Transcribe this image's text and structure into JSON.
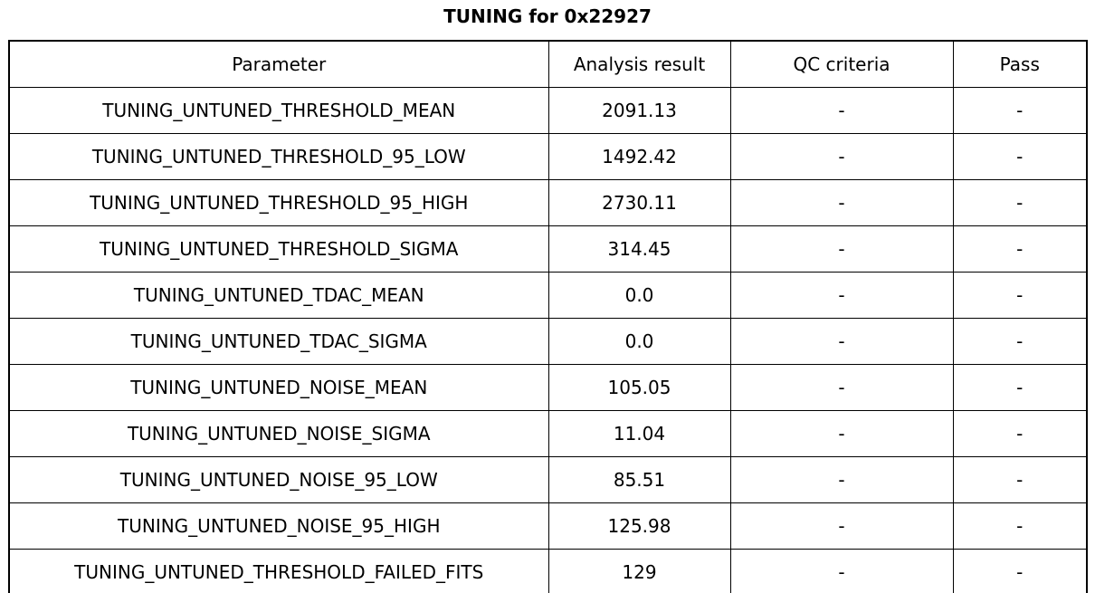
{
  "title": "TUNING for 0x22927",
  "colors": {
    "background": "#ffffff",
    "border": "#000000",
    "text": "#000000"
  },
  "chart_data": {
    "type": "table",
    "title": "TUNING for 0x22927",
    "columns": [
      "Parameter",
      "Analysis result",
      "QC criteria",
      "Pass"
    ],
    "rows": [
      [
        "TUNING_UNTUNED_THRESHOLD_MEAN",
        "2091.13",
        "-",
        "-"
      ],
      [
        "TUNING_UNTUNED_THRESHOLD_95_LOW",
        "1492.42",
        "-",
        "-"
      ],
      [
        "TUNING_UNTUNED_THRESHOLD_95_HIGH",
        "2730.11",
        "-",
        "-"
      ],
      [
        "TUNING_UNTUNED_THRESHOLD_SIGMA",
        "314.45",
        "-",
        "-"
      ],
      [
        "TUNING_UNTUNED_TDAC_MEAN",
        "0.0",
        "-",
        "-"
      ],
      [
        "TUNING_UNTUNED_TDAC_SIGMA",
        "0.0",
        "-",
        "-"
      ],
      [
        "TUNING_UNTUNED_NOISE_MEAN",
        "105.05",
        "-",
        "-"
      ],
      [
        "TUNING_UNTUNED_NOISE_SIGMA",
        "11.04",
        "-",
        "-"
      ],
      [
        "TUNING_UNTUNED_NOISE_95_LOW",
        "85.51",
        "-",
        "-"
      ],
      [
        "TUNING_UNTUNED_NOISE_95_HIGH",
        "125.98",
        "-",
        "-"
      ],
      [
        "TUNING_UNTUNED_THRESHOLD_FAILED_FITS",
        "129",
        "-",
        "-"
      ]
    ],
    "layout": {
      "grid": true,
      "header_row": true,
      "cell_text_align": "center"
    }
  }
}
